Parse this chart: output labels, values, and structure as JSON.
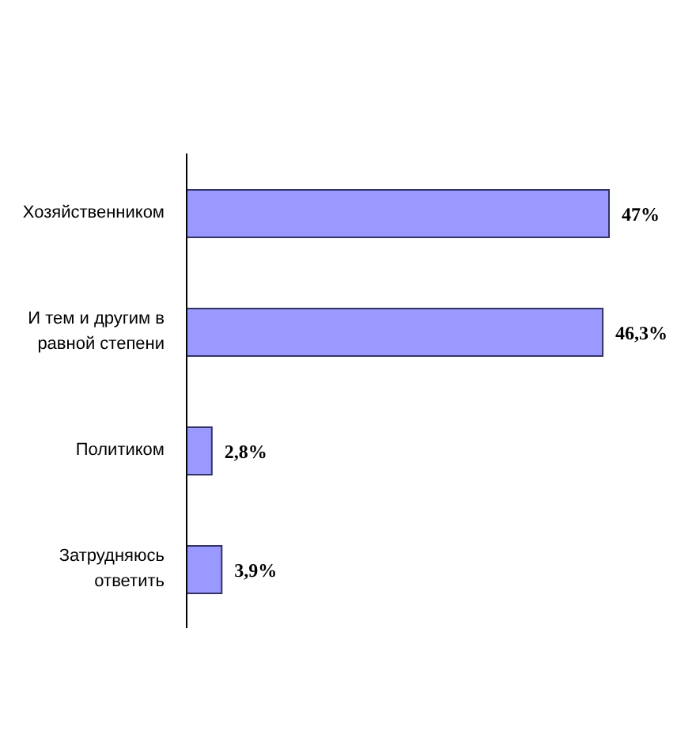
{
  "chart_data": {
    "type": "bar",
    "orientation": "horizontal",
    "categories": [
      "Хозяйственником",
      "И тем и другим в равной степени",
      "Политиком",
      "Затрудняюсь ответить"
    ],
    "values": [
      47,
      46.3,
      2.8,
      3.9
    ],
    "value_labels": [
      "47%",
      "46,3%",
      "2,8%",
      "3,9%"
    ],
    "color": "#9999ff"
  }
}
